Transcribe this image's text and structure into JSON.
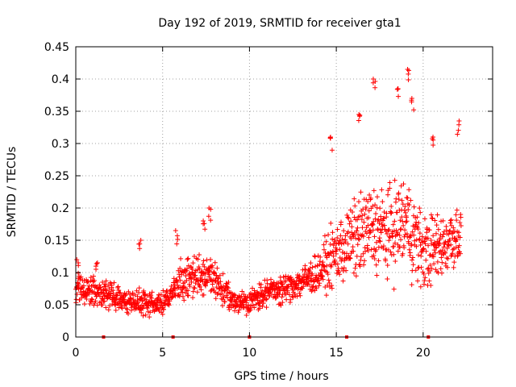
{
  "chart_data": {
    "type": "scatter",
    "title": "Day 192 of 2019, SRMTID for receiver gta1",
    "xlabel": "GPS time / hours",
    "ylabel": "SRMTID / TECUs",
    "xlim": [
      0,
      24
    ],
    "ylim": [
      0,
      0.45
    ],
    "x_ticks": [
      0,
      5,
      10,
      15,
      20
    ],
    "x_tick_labels": [
      "0",
      "5",
      "10",
      "15",
      "20"
    ],
    "y_ticks": [
      0,
      0.05,
      0.1,
      0.15,
      0.2,
      0.25,
      0.3,
      0.35,
      0.4,
      0.45
    ],
    "y_tick_labels": [
      "0",
      "0.05",
      "0.1",
      "0.15",
      "0.2",
      "0.25",
      "0.3",
      "0.35",
      "0.4",
      "0.45"
    ],
    "grid": true,
    "marker": "plus",
    "color": "#ff0000",
    "baseline_points_at_zero_x": [
      1.6,
      5.6,
      10.0,
      15.6,
      20.3
    ],
    "series": [
      {
        "name": "SRMTID",
        "envelope_hours": [
          0,
          1,
          2,
          3,
          4,
          5,
          6,
          7,
          8,
          9,
          10,
          11,
          12,
          13,
          14,
          15,
          16,
          17,
          18,
          19,
          20,
          21,
          22
        ],
        "median_tecu": [
          0.075,
          0.07,
          0.065,
          0.055,
          0.055,
          0.05,
          0.085,
          0.095,
          0.09,
          0.055,
          0.055,
          0.07,
          0.075,
          0.085,
          0.1,
          0.13,
          0.15,
          0.17,
          0.16,
          0.18,
          0.13,
          0.14,
          0.16
        ],
        "spread_tecu": [
          0.025,
          0.025,
          0.022,
          0.022,
          0.025,
          0.02,
          0.035,
          0.04,
          0.035,
          0.02,
          0.02,
          0.025,
          0.025,
          0.03,
          0.035,
          0.06,
          0.07,
          0.08,
          0.08,
          0.09,
          0.07,
          0.06,
          0.06
        ],
        "peaks": [
          [
            0.1,
            0.12
          ],
          [
            1.2,
            0.115
          ],
          [
            3.7,
            0.15
          ],
          [
            5.8,
            0.165
          ],
          [
            7.4,
            0.18
          ],
          [
            7.7,
            0.2
          ],
          [
            14.7,
            0.31
          ],
          [
            16.3,
            0.345
          ],
          [
            17.2,
            0.4
          ],
          [
            18.5,
            0.385
          ],
          [
            19.1,
            0.415
          ],
          [
            19.4,
            0.37
          ],
          [
            20.6,
            0.31
          ],
          [
            22.0,
            0.335
          ]
        ],
        "end_hour": 22.2
      }
    ]
  }
}
